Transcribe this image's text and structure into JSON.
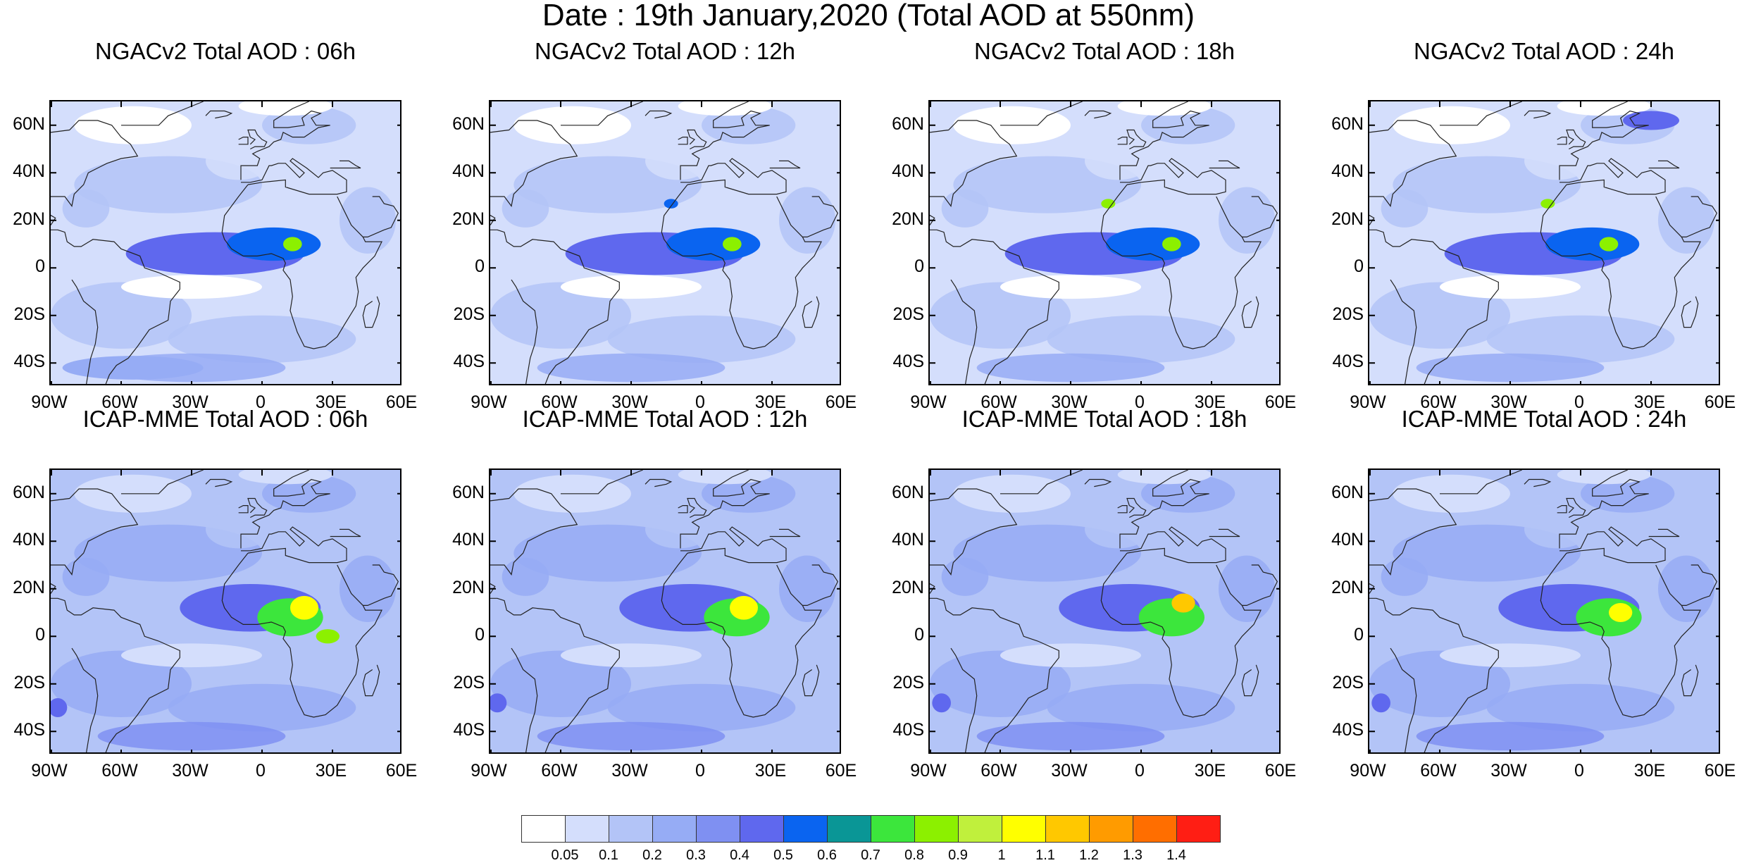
{
  "title": "Date : 19th January,2020 (Total AOD at 550nm)",
  "lat_ticks": [
    "60N",
    "40N",
    "20N",
    "0",
    "20S",
    "40S"
  ],
  "lat_values": [
    60,
    40,
    20,
    0,
    -20,
    -40
  ],
  "lon_ticks": [
    "90W",
    "60W",
    "30W",
    "0",
    "30E",
    "60E"
  ],
  "lon_values": [
    -90,
    -60,
    -30,
    0,
    30,
    60
  ],
  "extent": {
    "lon_min": -90,
    "lon_max": 60,
    "lat_min": -50,
    "lat_max": 70
  },
  "panels": [
    {
      "title": "NGACv2 Total AOD : 06h",
      "model": "NGACv2",
      "hour": "06h",
      "plumes": [
        {
          "lon": -20,
          "lat": 6,
          "rx": 38,
          "ry": 9,
          "level": 5
        },
        {
          "lon": 5,
          "lat": 10,
          "rx": 20,
          "ry": 7,
          "level": 6
        },
        {
          "lon": 13,
          "lat": 10,
          "rx": 4,
          "ry": 3,
          "level": 9
        },
        {
          "lon": -55,
          "lat": -42,
          "rx": 30,
          "ry": 5,
          "level": 3
        }
      ]
    },
    {
      "title": "NGACv2 Total AOD : 12h",
      "model": "NGACv2",
      "hour": "12h",
      "plumes": [
        {
          "lon": -20,
          "lat": 6,
          "rx": 38,
          "ry": 9,
          "level": 5
        },
        {
          "lon": 5,
          "lat": 10,
          "rx": 20,
          "ry": 7,
          "level": 6
        },
        {
          "lon": 13,
          "lat": 10,
          "rx": 4,
          "ry": 3,
          "level": 9
        },
        {
          "lon": -13,
          "lat": 27,
          "rx": 3,
          "ry": 2,
          "level": 6
        }
      ]
    },
    {
      "title": "NGACv2 Total AOD : 18h",
      "model": "NGACv2",
      "hour": "18h",
      "plumes": [
        {
          "lon": -20,
          "lat": 6,
          "rx": 38,
          "ry": 9,
          "level": 5
        },
        {
          "lon": 5,
          "lat": 10,
          "rx": 20,
          "ry": 7,
          "level": 6
        },
        {
          "lon": 13,
          "lat": 10,
          "rx": 4,
          "ry": 3,
          "level": 9
        },
        {
          "lon": -14,
          "lat": 27,
          "rx": 3,
          "ry": 2,
          "level": 9
        }
      ]
    },
    {
      "title": "NGACv2 Total AOD : 24h",
      "model": "NGACv2",
      "hour": "24h",
      "plumes": [
        {
          "lon": -20,
          "lat": 6,
          "rx": 38,
          "ry": 9,
          "level": 5
        },
        {
          "lon": 5,
          "lat": 10,
          "rx": 20,
          "ry": 7,
          "level": 6
        },
        {
          "lon": 12,
          "lat": 10,
          "rx": 4,
          "ry": 3,
          "level": 9
        },
        {
          "lon": -14,
          "lat": 27,
          "rx": 3,
          "ry": 2,
          "level": 9
        },
        {
          "lon": 30,
          "lat": 62,
          "rx": 12,
          "ry": 4,
          "level": 5
        }
      ]
    },
    {
      "title": "ICAP-MME Total AOD : 06h",
      "model": "ICAP-MME",
      "hour": "06h",
      "plumes": [
        {
          "lon": -5,
          "lat": 12,
          "rx": 30,
          "ry": 10,
          "level": 5
        },
        {
          "lon": 12,
          "lat": 8,
          "rx": 14,
          "ry": 8,
          "level": 8
        },
        {
          "lon": 18,
          "lat": 12,
          "rx": 6,
          "ry": 5,
          "level": 11
        },
        {
          "lon": 28,
          "lat": 0,
          "rx": 5,
          "ry": 3,
          "level": 9
        },
        {
          "lon": -87,
          "lat": -30,
          "rx": 4,
          "ry": 4,
          "level": 5
        }
      ]
    },
    {
      "title": "ICAP-MME Total AOD : 12h",
      "model": "ICAP-MME",
      "hour": "12h",
      "plumes": [
        {
          "lon": -5,
          "lat": 12,
          "rx": 30,
          "ry": 10,
          "level": 5
        },
        {
          "lon": 15,
          "lat": 8,
          "rx": 14,
          "ry": 8,
          "level": 8
        },
        {
          "lon": 18,
          "lat": 12,
          "rx": 6,
          "ry": 5,
          "level": 11
        },
        {
          "lon": -87,
          "lat": -28,
          "rx": 4,
          "ry": 4,
          "level": 5
        }
      ]
    },
    {
      "title": "ICAP-MME Total AOD : 18h",
      "model": "ICAP-MME",
      "hour": "18h",
      "plumes": [
        {
          "lon": -5,
          "lat": 12,
          "rx": 30,
          "ry": 10,
          "level": 5
        },
        {
          "lon": 13,
          "lat": 8,
          "rx": 14,
          "ry": 8,
          "level": 8
        },
        {
          "lon": 18,
          "lat": 14,
          "rx": 5,
          "ry": 4,
          "level": 12
        },
        {
          "lon": -85,
          "lat": -28,
          "rx": 4,
          "ry": 4,
          "level": 5
        }
      ]
    },
    {
      "title": "ICAP-MME Total AOD : 24h",
      "model": "ICAP-MME",
      "hour": "24h",
      "plumes": [
        {
          "lon": -5,
          "lat": 12,
          "rx": 30,
          "ry": 10,
          "level": 5
        },
        {
          "lon": 12,
          "lat": 8,
          "rx": 14,
          "ry": 8,
          "level": 8
        },
        {
          "lon": 17,
          "lat": 10,
          "rx": 5,
          "ry": 4,
          "level": 11
        },
        {
          "lon": -85,
          "lat": -28,
          "rx": 4,
          "ry": 4,
          "level": 5
        }
      ]
    }
  ],
  "colorbar": {
    "labels": [
      "0.05",
      "0.1",
      "0.2",
      "0.3",
      "0.4",
      "0.5",
      "0.6",
      "0.7",
      "0.8",
      "0.9",
      "1",
      "1.1",
      "1.2",
      "1.3",
      "1.4"
    ],
    "colors": [
      "#ffffff",
      "#d4defc",
      "#b3c4f7",
      "#96acf5",
      "#7f90f2",
      "#5f68ee",
      "#0a64f0",
      "#0a9696",
      "#3ce63c",
      "#8cf000",
      "#c0f03c",
      "#ffff00",
      "#ffc800",
      "#ff9b00",
      "#ff6e00",
      "#ff1e14"
    ]
  }
}
